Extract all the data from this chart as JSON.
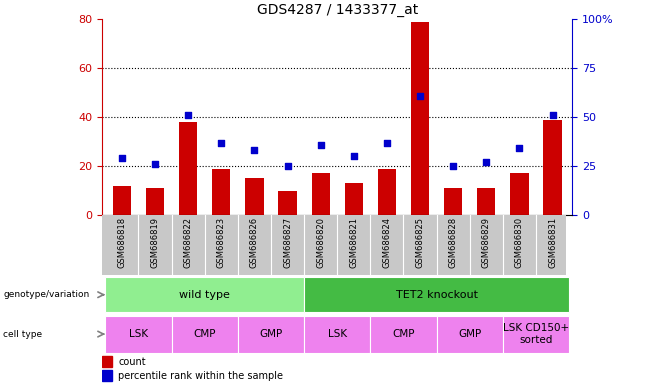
{
  "title": "GDS4287 / 1433377_at",
  "samples": [
    "GSM686818",
    "GSM686819",
    "GSM686822",
    "GSM686823",
    "GSM686826",
    "GSM686827",
    "GSM686820",
    "GSM686821",
    "GSM686824",
    "GSM686825",
    "GSM686828",
    "GSM686829",
    "GSM686830",
    "GSM686831"
  ],
  "bar_values": [
    12,
    11,
    38,
    19,
    15,
    10,
    17,
    13,
    19,
    79,
    11,
    11,
    17,
    39
  ],
  "dot_values": [
    29,
    26,
    51,
    37,
    33,
    25,
    36,
    30,
    37,
    61,
    25,
    27,
    34,
    51
  ],
  "bar_color": "#cc0000",
  "dot_color": "#0000cc",
  "left_ylim": [
    0,
    80
  ],
  "right_ylim": [
    0,
    100
  ],
  "left_yticks": [
    0,
    20,
    40,
    60,
    80
  ],
  "right_yticks": [
    0,
    25,
    50,
    75,
    100
  ],
  "right_yticklabels": [
    "0",
    "25",
    "50",
    "75",
    "100%"
  ],
  "grid_values": [
    20,
    40,
    60
  ],
  "genotype_groups": [
    {
      "label": "wild type",
      "start": 0,
      "end": 6,
      "color": "#90ee90"
    },
    {
      "label": "TET2 knockout",
      "start": 6,
      "end": 14,
      "color": "#44bb44"
    }
  ],
  "cell_type_groups": [
    {
      "label": "LSK",
      "start": 0,
      "end": 2
    },
    {
      "label": "CMP",
      "start": 2,
      "end": 4
    },
    {
      "label": "GMP",
      "start": 4,
      "end": 6
    },
    {
      "label": "LSK",
      "start": 6,
      "end": 8
    },
    {
      "label": "CMP",
      "start": 8,
      "end": 10
    },
    {
      "label": "GMP",
      "start": 10,
      "end": 12
    },
    {
      "label": "LSK CD150+\nsorted",
      "start": 12,
      "end": 14
    }
  ],
  "cell_type_color": "#ee82ee",
  "bar_color_legend": "#cc0000",
  "dot_color_legend": "#0000cc",
  "sample_bg": "#c8c8c8",
  "white_bg": "#ffffff"
}
